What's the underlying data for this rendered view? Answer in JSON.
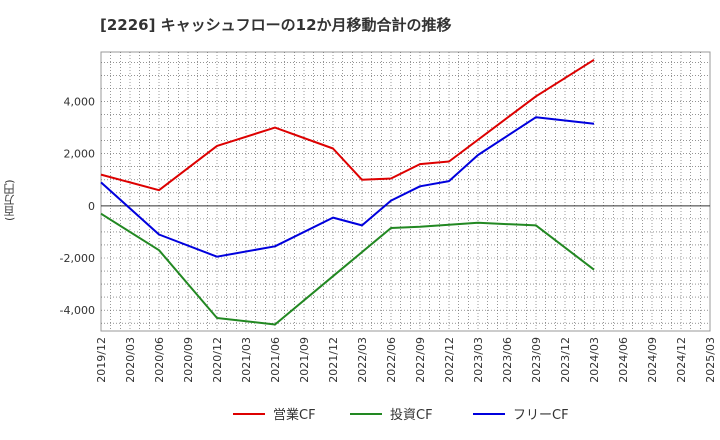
{
  "page": {
    "title": "[2226]  キャッシュフローの12か月移動合計の推移"
  },
  "chart_data": {
    "type": "line",
    "title": "[2226]  キャッシュフローの12か月移動合計の推移",
    "ylabel": "(百万円)",
    "xlabel": "",
    "ylim": [
      -4800,
      5900
    ],
    "yticks": [
      4000,
      2000,
      0,
      -2000,
      -4000
    ],
    "ytick_labels": [
      "4,000",
      "2,000",
      "0",
      "-2,000",
      "-4,000"
    ],
    "x_categories": [
      "2019/12",
      "2020/03",
      "2020/06",
      "2020/09",
      "2020/12",
      "2021/03",
      "2021/06",
      "2021/09",
      "2021/12",
      "2022/03",
      "2022/06",
      "2022/09",
      "2022/12",
      "2023/03",
      "2023/06",
      "2023/09",
      "2023/12",
      "2024/03",
      "2024/06",
      "2024/09",
      "2024/12",
      "2025/03"
    ],
    "grid": true,
    "legend_position": "bottom",
    "series": [
      {
        "name": "営業CF",
        "color": "#dd0000",
        "points": [
          [
            "2019/12",
            1200
          ],
          [
            "2020/06",
            600
          ],
          [
            "2020/12",
            2300
          ],
          [
            "2021/06",
            3000
          ],
          [
            "2021/12",
            2200
          ],
          [
            "2022/03",
            1000
          ],
          [
            "2022/06",
            1050
          ],
          [
            "2022/09",
            1600
          ],
          [
            "2022/12",
            1700
          ],
          [
            "2023/09",
            4200
          ],
          [
            "2024/03",
            5600
          ]
        ]
      },
      {
        "name": "投資CF",
        "color": "#228822",
        "points": [
          [
            "2019/12",
            -300
          ],
          [
            "2020/06",
            -1700
          ],
          [
            "2020/12",
            -4300
          ],
          [
            "2021/06",
            -4550
          ],
          [
            "2021/12",
            -2700
          ],
          [
            "2022/06",
            -850
          ],
          [
            "2022/09",
            -800
          ],
          [
            "2023/03",
            -650
          ],
          [
            "2023/09",
            -750
          ],
          [
            "2024/03",
            -2450
          ]
        ]
      },
      {
        "name": "フリーCF",
        "color": "#0000dd",
        "points": [
          [
            "2019/12",
            900
          ],
          [
            "2020/06",
            -1100
          ],
          [
            "2020/12",
            -1950
          ],
          [
            "2021/06",
            -1550
          ],
          [
            "2021/12",
            -450
          ],
          [
            "2022/03",
            -750
          ],
          [
            "2022/06",
            200
          ],
          [
            "2022/09",
            750
          ],
          [
            "2022/12",
            950
          ],
          [
            "2023/03",
            1950
          ],
          [
            "2023/09",
            3400
          ],
          [
            "2024/03",
            3150
          ]
        ]
      }
    ]
  }
}
